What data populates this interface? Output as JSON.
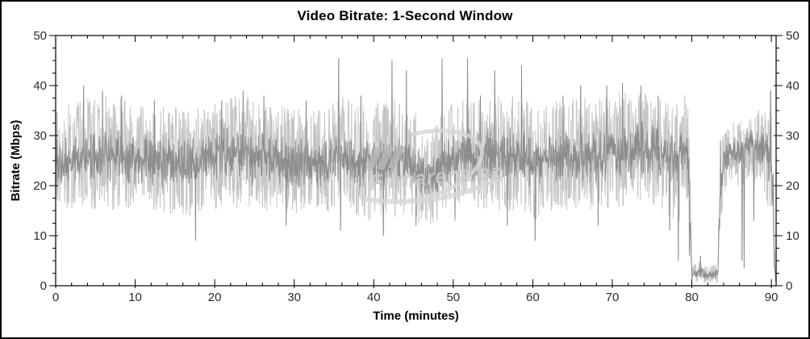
{
  "chart_data": {
    "type": "line",
    "title": "Video Bitrate: 1-Second Window",
    "xlabel": "Time (minutes)",
    "ylabel": "Bitrate (Mbps)",
    "xlim": [
      0,
      90.6
    ],
    "ylim": [
      0,
      50
    ],
    "grid": false,
    "legend": "none",
    "x_major_ticks": [
      0,
      10,
      20,
      30,
      40,
      50,
      60,
      70,
      80,
      90
    ],
    "x_tick_labels": [
      "0",
      "10",
      "20",
      "30",
      "40",
      "50",
      "60",
      "70",
      "80",
      "90"
    ],
    "x_minor_step": 2,
    "y_major_ticks": [
      0,
      10,
      20,
      30,
      40,
      50
    ],
    "y_tick_labels": [
      "0",
      "10",
      "20",
      "30",
      "40",
      "50"
    ],
    "y_minor_step": 2.5,
    "right_axis_labels": [
      "0",
      "10",
      "20",
      "30",
      "40",
      "50"
    ],
    "colors": {
      "core_trace": "#8d8d8d",
      "extreme_trace": "#c4c4c4",
      "axis": "#000000",
      "tick_label": "#2b2b2b",
      "watermark": "#cfcfcf"
    },
    "series": [
      {
        "name": "bitrate-extremes-fringe",
        "color": "#c4c4c4"
      },
      {
        "name": "bitrate-1s-window",
        "color": "#8d8d8d"
      }
    ],
    "noise_seed": 987654321,
    "sample_step_minutes": 0.045,
    "envelope": [
      [
        0.0,
        20,
        30,
        16,
        35
      ],
      [
        2.0,
        20,
        31,
        15,
        37
      ],
      [
        5.0,
        20,
        32,
        15,
        38
      ],
      [
        8.0,
        20,
        32,
        15,
        38
      ],
      [
        11.0,
        19,
        31,
        14,
        36
      ],
      [
        14.0,
        19,
        31,
        14,
        36
      ],
      [
        17.0,
        18,
        30,
        12,
        35
      ],
      [
        19.0,
        20,
        31,
        15,
        36
      ],
      [
        22.0,
        20,
        32,
        15,
        38
      ],
      [
        24.0,
        20,
        32,
        15,
        38
      ],
      [
        27.0,
        19,
        31,
        15,
        36
      ],
      [
        30.0,
        19,
        30,
        14,
        36
      ],
      [
        33.0,
        19,
        30,
        14,
        36
      ],
      [
        36.0,
        20,
        31,
        15,
        38
      ],
      [
        39.0,
        19,
        30,
        13,
        36
      ],
      [
        41.5,
        18,
        30,
        11,
        37
      ],
      [
        44.0,
        20,
        32,
        14,
        38
      ],
      [
        46.0,
        17,
        27,
        12,
        33
      ],
      [
        47.5,
        17,
        27,
        12,
        33
      ],
      [
        49.0,
        19,
        30,
        14,
        36
      ],
      [
        52.0,
        20,
        32,
        15,
        38
      ],
      [
        55.0,
        20,
        32,
        15,
        38
      ],
      [
        58.0,
        20,
        32,
        15,
        38
      ],
      [
        60.5,
        19,
        31,
        13,
        36
      ],
      [
        63.0,
        20,
        31,
        15,
        37
      ],
      [
        66.0,
        20,
        32,
        15,
        38
      ],
      [
        69.0,
        20,
        32,
        15,
        38
      ],
      [
        71.5,
        21,
        33,
        16,
        39
      ],
      [
        74.0,
        21,
        33,
        16,
        39
      ],
      [
        76.5,
        20,
        32,
        15,
        37
      ],
      [
        78.3,
        20,
        32,
        12,
        37
      ],
      [
        79.0,
        22,
        33,
        16,
        39
      ],
      [
        79.6,
        20,
        31,
        14,
        36
      ],
      [
        79.8,
        8,
        20,
        4,
        24
      ],
      [
        80.0,
        1,
        3,
        0.5,
        4
      ],
      [
        81.0,
        1.5,
        4,
        0.5,
        5
      ],
      [
        82.0,
        1,
        3,
        0.5,
        4
      ],
      [
        83.3,
        1,
        3.5,
        0.5,
        5
      ],
      [
        83.5,
        12,
        22,
        8,
        26
      ],
      [
        84.0,
        22,
        29,
        18,
        31
      ],
      [
        85.0,
        24,
        31,
        20,
        33
      ],
      [
        86.2,
        23,
        30,
        18,
        33
      ],
      [
        87.0,
        25,
        31,
        21,
        34
      ],
      [
        88.0,
        24,
        32,
        19,
        35
      ],
      [
        89.3,
        23,
        32,
        17,
        36
      ],
      [
        89.9,
        18,
        33,
        14,
        40
      ],
      [
        90.2,
        8,
        28,
        4,
        32
      ],
      [
        90.4,
        1,
        6,
        0,
        8
      ],
      [
        90.6,
        0,
        1,
        0,
        2
      ]
    ],
    "spike_events": [
      [
        3.5,
        40
      ],
      [
        5.9,
        39
      ],
      [
        8.3,
        38
      ],
      [
        12.4,
        37
      ],
      [
        17.6,
        9
      ],
      [
        20.9,
        37
      ],
      [
        23.6,
        39
      ],
      [
        26.2,
        38
      ],
      [
        29.0,
        12
      ],
      [
        31.5,
        37
      ],
      [
        35.6,
        45.5
      ],
      [
        35.8,
        11
      ],
      [
        38.4,
        38
      ],
      [
        41.2,
        10
      ],
      [
        42.3,
        45
      ],
      [
        44.1,
        43
      ],
      [
        45.3,
        12
      ],
      [
        48.6,
        45.5
      ],
      [
        50.2,
        13
      ],
      [
        51.8,
        45.5
      ],
      [
        53.4,
        38
      ],
      [
        55.2,
        43
      ],
      [
        56.8,
        12
      ],
      [
        58.6,
        44
      ],
      [
        60.3,
        9
      ],
      [
        63.8,
        38
      ],
      [
        66.0,
        40
      ],
      [
        68.2,
        12
      ],
      [
        69.3,
        40
      ],
      [
        71.3,
        40.5
      ],
      [
        73.6,
        40
      ],
      [
        75.8,
        38
      ],
      [
        77.2,
        11
      ],
      [
        78.3,
        5
      ],
      [
        79.7,
        6
      ],
      [
        81.1,
        6
      ],
      [
        83.6,
        29
      ],
      [
        86.3,
        5
      ],
      [
        86.6,
        3.5
      ],
      [
        87.8,
        13
      ],
      [
        89.9,
        39
      ],
      [
        90.1,
        16
      ]
    ]
  },
  "watermark": {
    "text": "Filmarena.cz"
  }
}
